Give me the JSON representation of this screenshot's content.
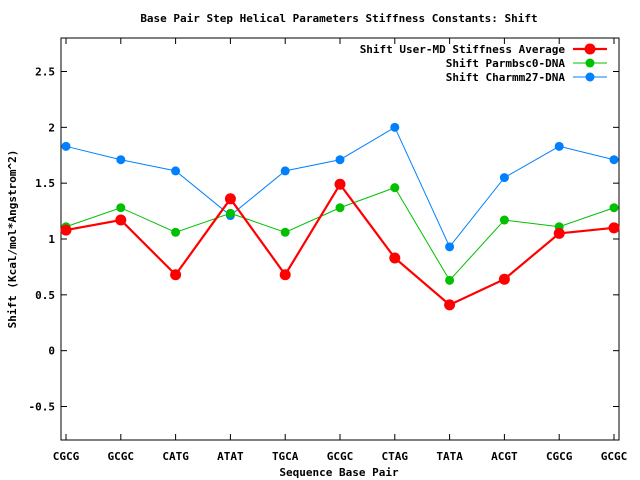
{
  "chart_data": {
    "type": "line",
    "title": "Base Pair Step Helical Parameters Stiffness Constants: Shift",
    "xlabel": "Sequence Base Pair",
    "ylabel": "Shift (Kcal/mol*Angstrom^2)",
    "categories": [
      "CGCG",
      "GCGC",
      "CATG",
      "ATAT",
      "TGCA",
      "GCGC",
      "CTAG",
      "TATA",
      "ACGT",
      "CGCG",
      "GCGC"
    ],
    "ylim": [
      -0.8,
      2.8
    ],
    "yticks": [
      -0.5,
      0,
      0.5,
      1,
      1.5,
      2,
      2.5
    ],
    "ytick_labels": [
      "-0.5",
      "0",
      "0.5",
      "1",
      "1.5",
      "2",
      "2.5"
    ],
    "grid": false,
    "legend_position": "top-right",
    "series": [
      {
        "name": "Shift User-MD Stiffness Average",
        "color": "#ff0000",
        "values": [
          1.08,
          1.17,
          0.68,
          1.36,
          0.68,
          1.49,
          0.83,
          0.41,
          0.64,
          1.05,
          1.1
        ]
      },
      {
        "name": "Shift Parmbsc0-DNA",
        "color": "#00c000",
        "values": [
          1.11,
          1.28,
          1.06,
          1.23,
          1.06,
          1.28,
          1.46,
          0.63,
          1.17,
          1.11,
          1.28
        ]
      },
      {
        "name": "Shift Charmm27-DNA",
        "color": "#0080ff",
        "values": [
          1.83,
          1.71,
          1.61,
          1.21,
          1.61,
          1.71,
          2.0,
          0.93,
          1.55,
          1.83,
          1.71
        ]
      }
    ]
  }
}
